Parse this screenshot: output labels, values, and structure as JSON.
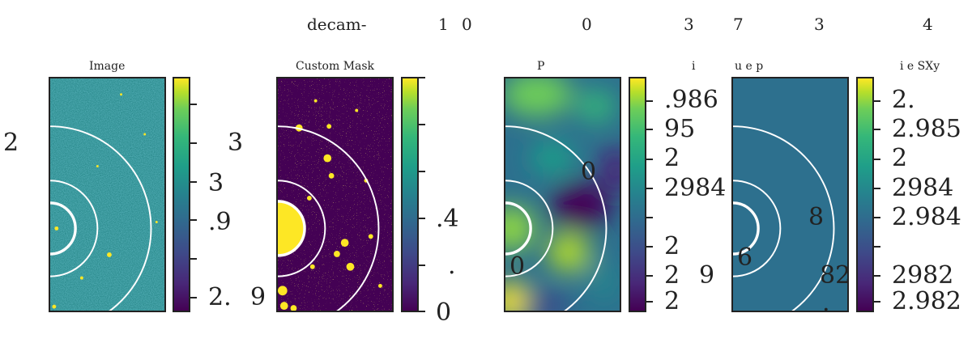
{
  "header_fragments": [
    "decam-",
    "1",
    "0",
    "0",
    "3",
    "7",
    "3",
    "4"
  ],
  "panels": [
    {
      "title": "Image",
      "cbar_labels": [
        "3",
        ".9",
        "2."
      ]
    },
    {
      "title": "Custom Mask",
      "cbar_labels": [
        ".4",
        ".",
        "0"
      ]
    },
    {
      "title": "P",
      "title_right": "i",
      "cbar_labels": [
        ".986",
        "95",
        "2",
        "2984",
        "2",
        "2",
        "2"
      ]
    },
    {
      "title": "u e p",
      "title_right": "i e SXy",
      "cbar_labels": [
        "2.",
        "2.985",
        "2",
        "2984",
        "2.984",
        "2982",
        "2.982"
      ]
    }
  ],
  "stray_labels": [
    "2",
    "3",
    "9",
    "0",
    "0",
    "9",
    "8",
    "6",
    "82",
    "."
  ],
  "colors": {
    "colormap": "viridis",
    "low": "#440154",
    "high": "#fde725",
    "ring": "#ffffff",
    "image_bg": "#2a8a8c",
    "mask_bg": "#440154",
    "uniform_bg": "#2d708e"
  }
}
